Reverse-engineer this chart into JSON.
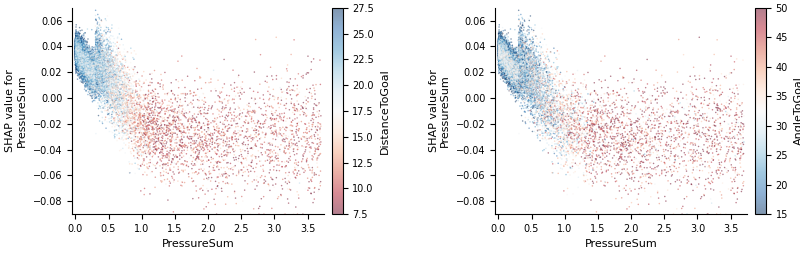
{
  "n_points": 15000,
  "seed": 42,
  "xlim": [
    -0.05,
    3.75
  ],
  "ylim": [
    -0.09,
    0.07
  ],
  "xlabel": "PressureSum",
  "ylabel": "SHAP value for\nPressureSum",
  "plot1": {
    "colorbar_label": "DistanceToGoal",
    "cmap": "RdBu",
    "cbar_ticks": [
      7.5,
      10.0,
      12.5,
      15.0,
      17.5,
      20.0,
      22.5,
      25.0,
      27.5
    ],
    "color_low": 7.5,
    "color_high": 27.5
  },
  "plot2": {
    "colorbar_label": "AngleToGoal",
    "cmap": "RdBu_r",
    "cbar_ticks": [
      15,
      20,
      25,
      30,
      35,
      40,
      45,
      50
    ],
    "color_low": 15,
    "color_high": 50
  },
  "xticks": [
    0.0,
    0.5,
    1.0,
    1.5,
    2.0,
    2.5,
    3.0,
    3.5
  ],
  "yticks": [
    -0.08,
    -0.06,
    -0.04,
    -0.02,
    0.0,
    0.02,
    0.04,
    0.06
  ],
  "point_size": 1.2,
  "point_alpha": 0.5
}
